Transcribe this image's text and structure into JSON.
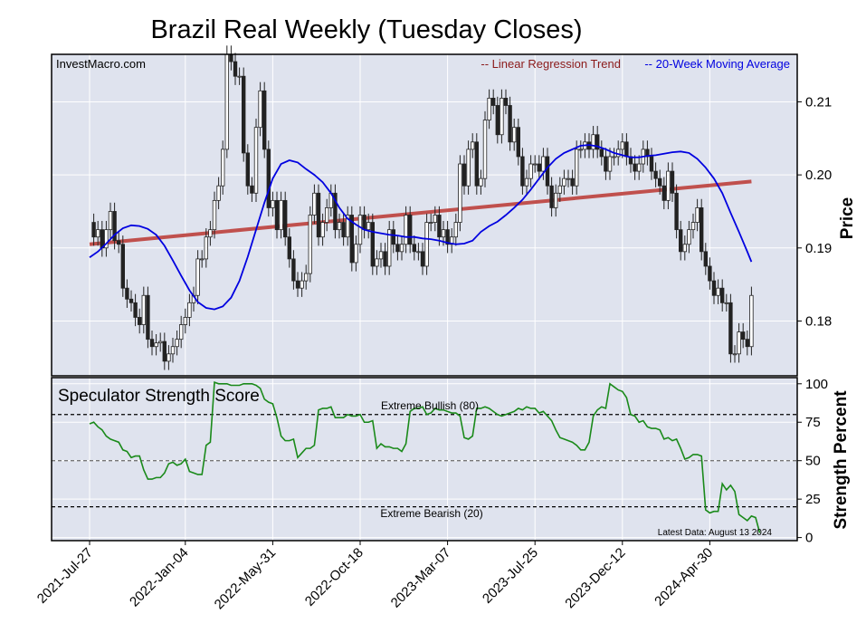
{
  "chart_data": [
    {
      "type": "candlestick",
      "title": "Brazil Real Weekly (Tuesday Closes)",
      "source": "InvestMacro.com",
      "ylabel": "Price",
      "ylim": [
        0.1725,
        0.2165
      ],
      "yticks": [
        "0.18",
        "0.19",
        "0.20",
        "0.21"
      ],
      "grid": true,
      "legend_position": "top-right",
      "legend": [
        {
          "name": "-- Linear Regression Trend",
          "color": "#8b1a1a"
        },
        {
          "name": "-- 20-Week Moving Average",
          "color": "#0000e0"
        }
      ],
      "x_tick_labels": [
        "2021-Jul-27",
        "2022-Jan-04",
        "2022-May-31",
        "2022-Oct-18",
        "2023-Mar-07",
        "2023-Jul-25",
        "2023-Dec-12",
        "2024-Apr-30"
      ],
      "x_tick_positions": [
        0,
        23,
        44,
        65,
        86,
        107,
        128,
        149
      ],
      "weeks": 160,
      "close": [
        0.1935,
        0.1915,
        0.1925,
        0.19,
        0.1925,
        0.195,
        0.191,
        0.1905,
        0.1845,
        0.183,
        0.1825,
        0.1805,
        0.1795,
        0.1835,
        0.1775,
        0.1765,
        0.177,
        0.1772,
        0.1745,
        0.1755,
        0.1765,
        0.1775,
        0.1795,
        0.1805,
        0.1825,
        0.1835,
        0.1885,
        0.1885,
        0.1915,
        0.1925,
        0.1965,
        0.1985,
        0.2035,
        0.2165,
        0.2155,
        0.2135,
        0.2135,
        0.203,
        0.1985,
        0.1975,
        0.2065,
        0.2115,
        0.2035,
        0.1955,
        0.1965,
        0.1925,
        0.1965,
        0.1915,
        0.1885,
        0.1855,
        0.1845,
        0.1855,
        0.1865,
        0.1945,
        0.1975,
        0.1915,
        0.1935,
        0.1955,
        0.1975,
        0.1925,
        0.1935,
        0.1915,
        0.1945,
        0.188,
        0.1905,
        0.1945,
        0.1925,
        0.1935,
        0.1875,
        0.1885,
        0.1895,
        0.1875,
        0.1925,
        0.1905,
        0.1895,
        0.1905,
        0.1945,
        0.1905,
        0.1895,
        0.1895,
        0.1875,
        0.1935,
        0.1935,
        0.1945,
        0.1915,
        0.1925,
        0.1905,
        0.1915,
        0.1935,
        0.2015,
        0.1985,
        0.2035,
        0.2045,
        0.1985,
        0.1995,
        0.2075,
        0.2105,
        0.2095,
        0.2055,
        0.2105,
        0.2095,
        0.2045,
        0.2065,
        0.2025,
        0.1985,
        0.1995,
        0.2015,
        0.2015,
        0.2005,
        0.2025,
        0.1985,
        0.1955,
        0.1975,
        0.1985,
        0.1995,
        0.1995,
        0.1985,
        0.2035,
        0.2035,
        0.2045,
        0.2035,
        0.2055,
        0.2035,
        0.2025,
        0.2005,
        0.2025,
        0.2025,
        0.2035,
        0.2045,
        0.2025,
        0.2015,
        0.2005,
        0.2015,
        0.2035,
        0.2025,
        0.2005,
        0.1995,
        0.1985,
        0.1965,
        0.2005,
        0.1975,
        0.1925,
        0.1895,
        0.1905,
        0.1925,
        0.1935,
        0.1955,
        0.1895,
        0.1875,
        0.1855,
        0.1835,
        0.1845,
        0.1825,
        0.1825,
        0.1755,
        0.1755,
        0.1785,
        0.1775,
        0.1765,
        0.1835
      ],
      "moving_average": [
        [
          0,
          0.1887
        ],
        [
          2,
          0.1895
        ],
        [
          4,
          0.1906
        ],
        [
          6,
          0.1918
        ],
        [
          8,
          0.1927
        ],
        [
          10,
          0.1931
        ],
        [
          12,
          0.193
        ],
        [
          14,
          0.1926
        ],
        [
          16,
          0.1918
        ],
        [
          18,
          0.1903
        ],
        [
          20,
          0.1883
        ],
        [
          22,
          0.1862
        ],
        [
          24,
          0.1842
        ],
        [
          26,
          0.1826
        ],
        [
          28,
          0.1818
        ],
        [
          30,
          0.1816
        ],
        [
          32,
          0.182
        ],
        [
          34,
          0.1832
        ],
        [
          36,
          0.1855
        ],
        [
          38,
          0.1888
        ],
        [
          40,
          0.1925
        ],
        [
          42,
          0.1962
        ],
        [
          44,
          0.1995
        ],
        [
          46,
          0.2015
        ],
        [
          48,
          0.202
        ],
        [
          50,
          0.2017
        ],
        [
          52,
          0.2008
        ],
        [
          54,
          0.2
        ],
        [
          56,
          0.199
        ],
        [
          58,
          0.1975
        ],
        [
          60,
          0.1955
        ],
        [
          62,
          0.194
        ],
        [
          64,
          0.1932
        ],
        [
          66,
          0.1925
        ],
        [
          68,
          0.1922
        ],
        [
          70,
          0.192
        ],
        [
          72,
          0.1918
        ],
        [
          74,
          0.1917
        ],
        [
          76,
          0.1915
        ],
        [
          78,
          0.1915
        ],
        [
          80,
          0.1913
        ],
        [
          82,
          0.1912
        ],
        [
          84,
          0.191
        ],
        [
          86,
          0.1907
        ],
        [
          88,
          0.1905
        ],
        [
          90,
          0.1906
        ],
        [
          92,
          0.191
        ],
        [
          94,
          0.1922
        ],
        [
          96,
          0.193
        ],
        [
          98,
          0.1936
        ],
        [
          100,
          0.1945
        ],
        [
          102,
          0.1955
        ],
        [
          104,
          0.1966
        ],
        [
          106,
          0.198
        ],
        [
          108,
          0.1995
        ],
        [
          110,
          0.201
        ],
        [
          112,
          0.2022
        ],
        [
          114,
          0.203
        ],
        [
          116,
          0.2035
        ],
        [
          118,
          0.204
        ],
        [
          120,
          0.2041
        ],
        [
          122,
          0.2039
        ],
        [
          124,
          0.2035
        ],
        [
          126,
          0.203
        ],
        [
          128,
          0.2027
        ],
        [
          130,
          0.2024
        ],
        [
          132,
          0.2024
        ],
        [
          134,
          0.2026
        ],
        [
          136,
          0.2027
        ],
        [
          138,
          0.2029
        ],
        [
          140,
          0.2031
        ],
        [
          142,
          0.2032
        ],
        [
          144,
          0.203
        ],
        [
          146,
          0.2022
        ],
        [
          148,
          0.201
        ],
        [
          150,
          0.1995
        ],
        [
          152,
          0.1975
        ],
        [
          154,
          0.1948
        ],
        [
          156,
          0.1922
        ],
        [
          158,
          0.1895
        ],
        [
          159,
          0.1881
        ]
      ],
      "regression_trend": [
        [
          0,
          0.1905
        ],
        [
          159,
          0.1991
        ]
      ]
    },
    {
      "type": "line",
      "title": "Speculator Strength Score",
      "ylabel": "Strength Percent",
      "ylim": [
        -2,
        104
      ],
      "yticks": [
        "0",
        "25",
        "50",
        "75",
        "100"
      ],
      "grid": true,
      "reference_lines": [
        {
          "value": 80,
          "label": "Extreme Bullish (80)"
        },
        {
          "value": 50,
          "label": ""
        },
        {
          "value": 20,
          "label": "Extreme Bearish (20)"
        }
      ],
      "annotation": "Latest Data: August 13 2024",
      "series": [
        {
          "color": "#1a8a1a",
          "points": [
            [
              0,
              74
            ],
            [
              1,
              75
            ],
            [
              2,
              72
            ],
            [
              3,
              70
            ],
            [
              4,
              66
            ],
            [
              5,
              64
            ],
            [
              6,
              63
            ],
            [
              7,
              62
            ],
            [
              8,
              57
            ],
            [
              9,
              56
            ],
            [
              10,
              52
            ],
            [
              11,
              53
            ],
            [
              12,
              53
            ],
            [
              13,
              44
            ],
            [
              14,
              38
            ],
            [
              15,
              38
            ],
            [
              16,
              39
            ],
            [
              17,
              39
            ],
            [
              18,
              42
            ],
            [
              19,
              48
            ],
            [
              20,
              49
            ],
            [
              21,
              47
            ],
            [
              22,
              48
            ],
            [
              23,
              51
            ],
            [
              24,
              43
            ],
            [
              25,
              42
            ],
            [
              26,
              41
            ],
            [
              27,
              41
            ],
            [
              28,
              60
            ],
            [
              29,
              62
            ],
            [
              30,
              101
            ],
            [
              31,
              100
            ],
            [
              32,
              100
            ],
            [
              33,
              100
            ],
            [
              34,
              99
            ],
            [
              35,
              99
            ],
            [
              36,
              99
            ],
            [
              37,
              100
            ],
            [
              38,
              100
            ],
            [
              39,
              100
            ],
            [
              40,
              99
            ],
            [
              41,
              97
            ],
            [
              42,
              90
            ],
            [
              43,
              88
            ],
            [
              44,
              87
            ],
            [
              45,
              78
            ],
            [
              46,
              66
            ],
            [
              47,
              63
            ],
            [
              48,
              63
            ],
            [
              49,
              64
            ],
            [
              50,
              52
            ],
            [
              51,
              55
            ],
            [
              52,
              58
            ],
            [
              53,
              58
            ],
            [
              54,
              60
            ],
            [
              55,
              83
            ],
            [
              56,
              84
            ],
            [
              57,
              84
            ],
            [
              58,
              85
            ],
            [
              59,
              78
            ],
            [
              60,
              78
            ],
            [
              61,
              78
            ],
            [
              62,
              80
            ],
            [
              63,
              79
            ],
            [
              64,
              79
            ],
            [
              65,
              80
            ],
            [
              66,
              75
            ],
            [
              67,
              75
            ],
            [
              68,
              76
            ],
            [
              69,
              58
            ],
            [
              70,
              61
            ],
            [
              71,
              59
            ],
            [
              72,
              59
            ],
            [
              73,
              58
            ],
            [
              74,
              58
            ],
            [
              75,
              56
            ],
            [
              76,
              61
            ],
            [
              77,
              82
            ],
            [
              78,
              84
            ],
            [
              79,
              84
            ],
            [
              80,
              85
            ],
            [
              81,
              80
            ],
            [
              82,
              81
            ],
            [
              83,
              84
            ],
            [
              84,
              83
            ],
            [
              85,
              83
            ],
            [
              86,
              82
            ],
            [
              87,
              81
            ],
            [
              88,
              81
            ],
            [
              89,
              79
            ],
            [
              90,
              65
            ],
            [
              91,
              64
            ],
            [
              92,
              66
            ],
            [
              93,
              84
            ],
            [
              94,
              84
            ],
            [
              95,
              85
            ],
            [
              96,
              84
            ],
            [
              97,
              82
            ],
            [
              98,
              80
            ],
            [
              99,
              79
            ],
            [
              100,
              80
            ],
            [
              101,
              81
            ],
            [
              102,
              82
            ],
            [
              103,
              84
            ],
            [
              104,
              83
            ],
            [
              105,
              85
            ],
            [
              106,
              84
            ],
            [
              107,
              84
            ],
            [
              108,
              81
            ],
            [
              109,
              82
            ],
            [
              110,
              79
            ],
            [
              111,
              76
            ],
            [
              112,
              70
            ],
            [
              113,
              65
            ],
            [
              114,
              64
            ],
            [
              115,
              63
            ],
            [
              116,
              62
            ],
            [
              117,
              60
            ],
            [
              118,
              57
            ],
            [
              119,
              57
            ],
            [
              120,
              62
            ],
            [
              121,
              79
            ],
            [
              122,
              83
            ],
            [
              123,
              85
            ],
            [
              124,
              84
            ],
            [
              125,
              100
            ],
            [
              126,
              98
            ],
            [
              127,
              96
            ],
            [
              128,
              95
            ],
            [
              129,
              91
            ],
            [
              130,
              80
            ],
            [
              131,
              79
            ],
            [
              132,
              75
            ],
            [
              133,
              76
            ],
            [
              134,
              72
            ],
            [
              135,
              71
            ],
            [
              136,
              71
            ],
            [
              137,
              70
            ],
            [
              138,
              64
            ],
            [
              139,
              65
            ],
            [
              140,
              63
            ],
            [
              141,
              64
            ],
            [
              142,
              58
            ],
            [
              143,
              51
            ],
            [
              144,
              52
            ],
            [
              145,
              54
            ],
            [
              146,
              54
            ],
            [
              147,
              53
            ],
            [
              148,
              18
            ],
            [
              149,
              16
            ],
            [
              150,
              17
            ],
            [
              151,
              17
            ],
            [
              152,
              35
            ],
            [
              153,
              31
            ],
            [
              154,
              34
            ],
            [
              155,
              30
            ],
            [
              156,
              15
            ],
            [
              157,
              13
            ],
            [
              158,
              11
            ],
            [
              159,
              14
            ],
            [
              160,
              13
            ],
            [
              161,
              3
            ]
          ]
        }
      ]
    }
  ]
}
